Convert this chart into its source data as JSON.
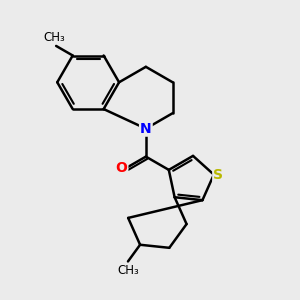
{
  "background_color": "#ebebeb",
  "atom_colors": {
    "N": "#0000ff",
    "O": "#ff0000",
    "S": "#b8b800",
    "C": "#000000"
  },
  "bond_color": "#000000",
  "bond_width": 1.8,
  "font_size_atoms": 10,
  "font_size_methyl": 8.5
}
